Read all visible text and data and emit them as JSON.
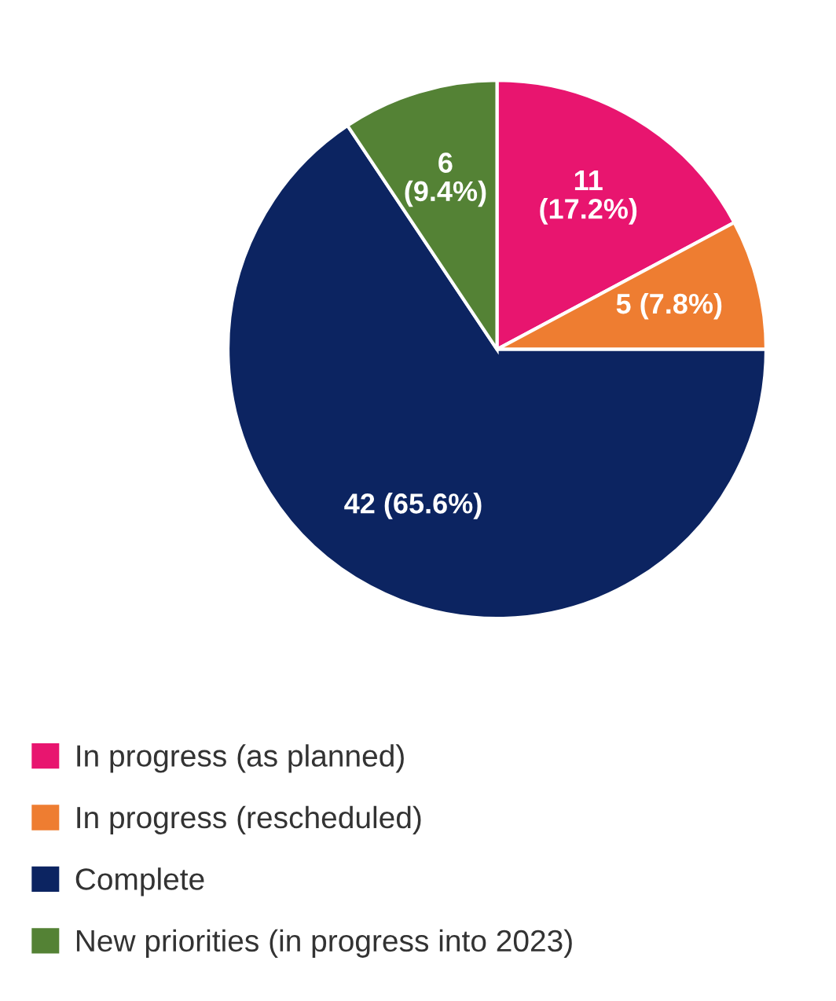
{
  "chart_data": {
    "type": "pie",
    "categories": [
      "In progress (as planned)",
      "In progress (rescheduled)",
      "Complete",
      "New priorities (in progress into 2023)"
    ],
    "values": [
      11,
      5,
      42,
      6
    ],
    "colors": [
      "#e8156f",
      "#ee7d31",
      "#0c2461",
      "#548235"
    ],
    "value_labels": [
      "11\n(17.2%)",
      "5 (7.8%)",
      "42 (65.6%)",
      "6\n(9.4%)"
    ],
    "legend": "bottom left"
  }
}
